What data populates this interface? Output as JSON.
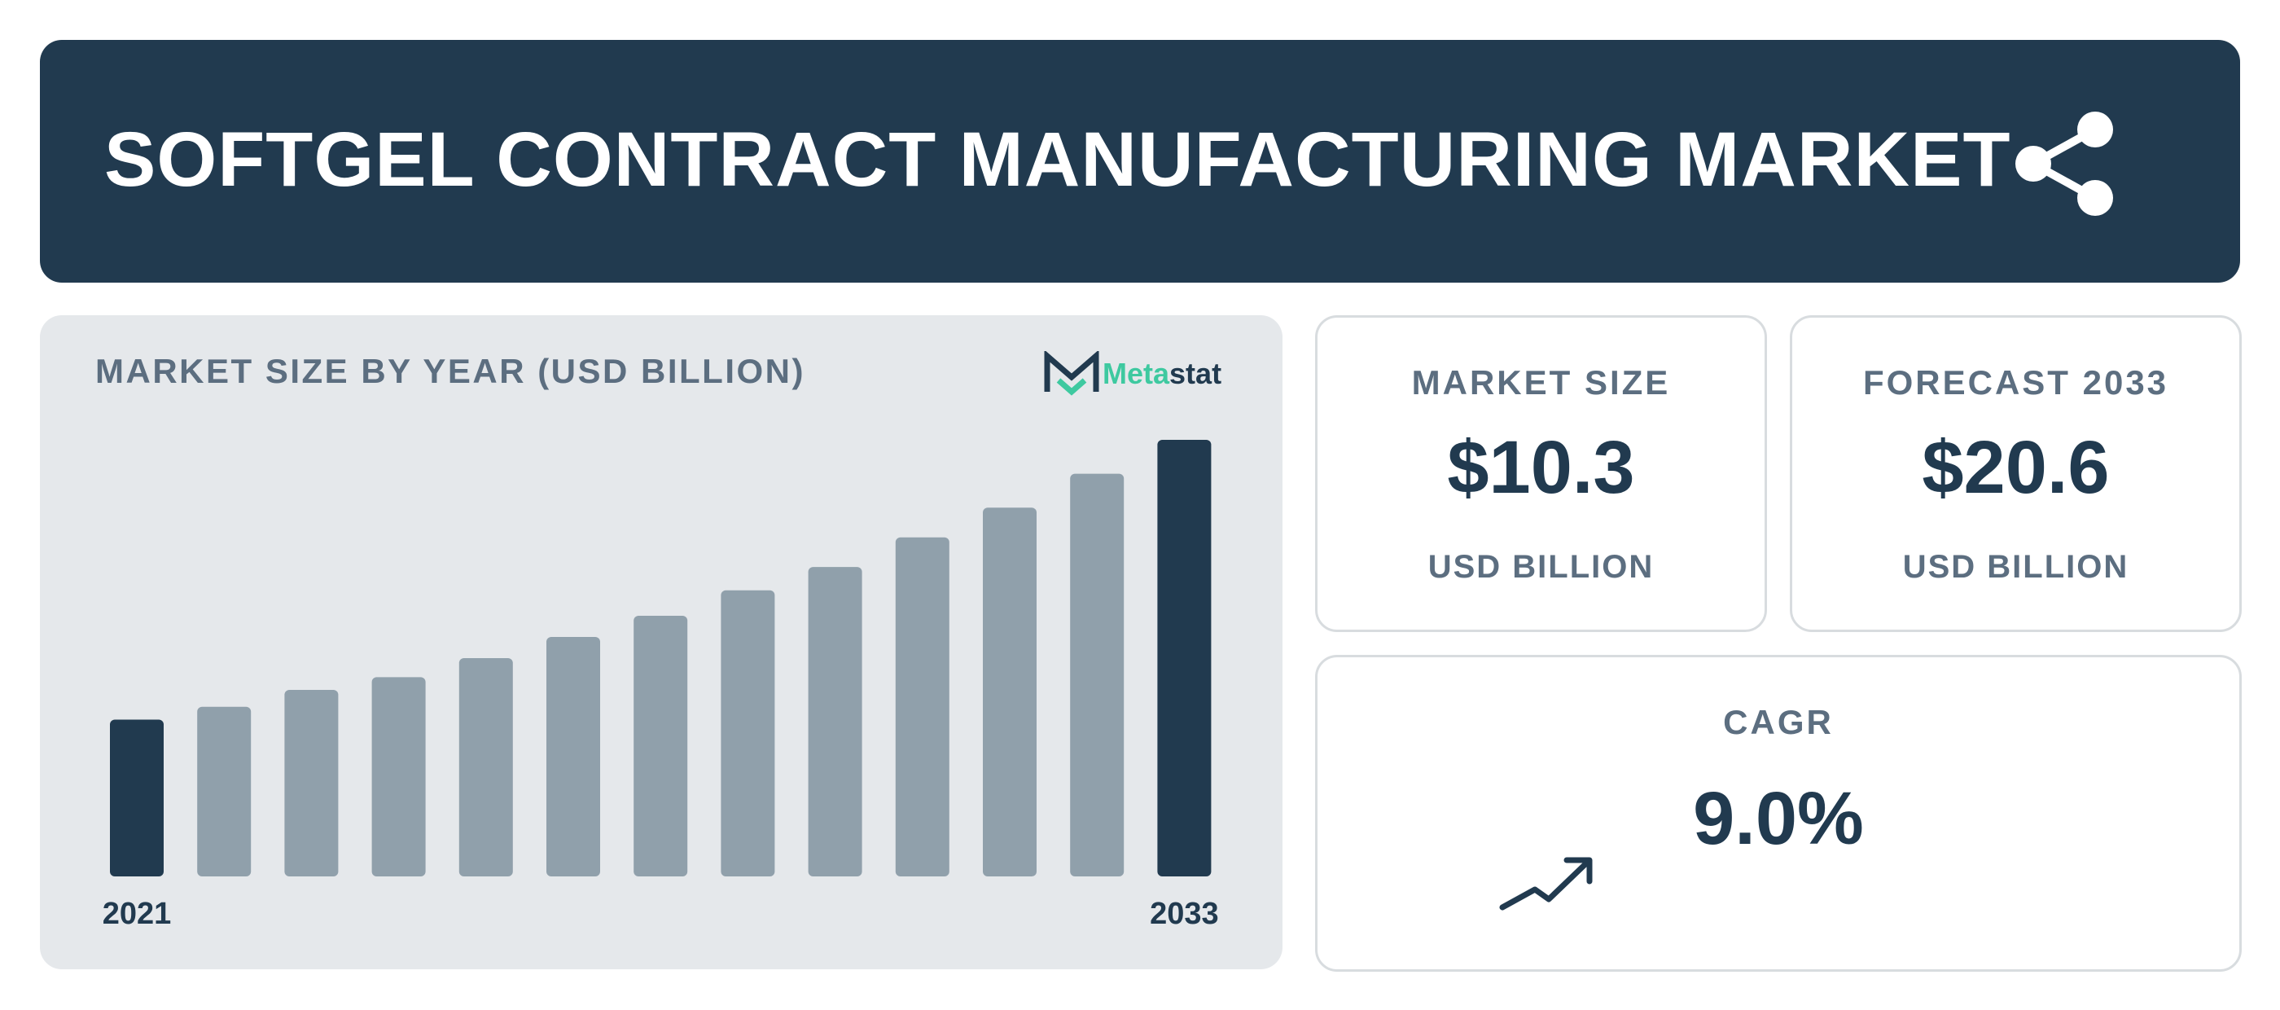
{
  "header": {
    "title": "SOFTGEL CONTRACT MANUFACTURING MARKET",
    "share_icon": "share-icon"
  },
  "colors": {
    "navy": "#213a4f",
    "bar_gray": "#90a0ab",
    "panel_gray": "#e5e8eb",
    "label_gray": "#5c6e80",
    "brand_green": "#3ec9a0"
  },
  "logo": {
    "text_part1": "Meta",
    "text_part2": "stat"
  },
  "chart_data": {
    "type": "bar",
    "title": "MARKET SIZE BY YEAR (USD BILLION)",
    "categories": [
      "2021",
      "2022",
      "2023",
      "2024",
      "2025",
      "2026",
      "2027",
      "2028",
      "2029",
      "2030",
      "2031",
      "2032",
      "2033"
    ],
    "values": [
      7.4,
      8.0,
      8.8,
      9.4,
      10.3,
      11.3,
      12.3,
      13.5,
      14.6,
      16.0,
      17.4,
      19.0,
      20.6
    ],
    "highlighted": [
      true,
      false,
      false,
      false,
      false,
      false,
      false,
      false,
      false,
      false,
      false,
      false,
      true
    ],
    "tick_labels": [
      "2021",
      "2033"
    ],
    "xlabel": "",
    "ylabel": "",
    "ylim": [
      0,
      20.6
    ],
    "grid": false,
    "legend": "none"
  },
  "stats": {
    "market_size": {
      "label": "MARKET SIZE",
      "value": "$10.3",
      "unit": "USD BILLION"
    },
    "forecast": {
      "label": "FORECAST 2033",
      "value": "$20.6",
      "unit": "USD BILLION"
    },
    "cagr": {
      "label": "CAGR",
      "value": "9.0%",
      "icon": "trending-up-icon"
    }
  }
}
